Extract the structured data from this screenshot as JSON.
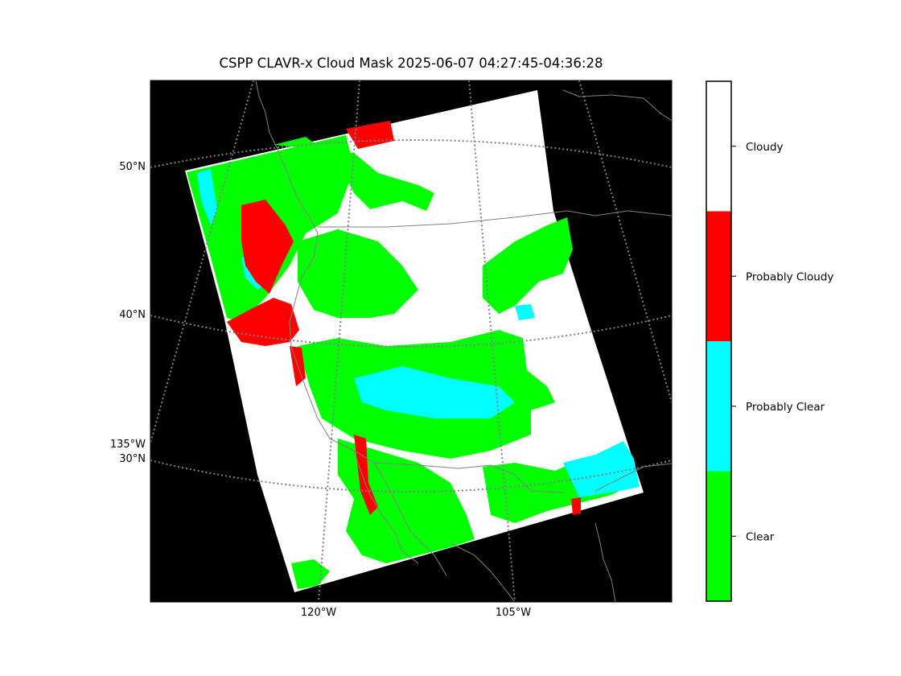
{
  "title": "CSPP CLAVR-x Cloud Mask 2025-06-07 04:27:45-04:36:28",
  "map": {
    "lat_labels": [
      "50°N",
      "40°N",
      "30°N"
    ],
    "lon_labels": [
      "120°W",
      "105°W"
    ],
    "lon_side_label": "135°W"
  },
  "colorbar": {
    "categories": [
      {
        "label": "Cloudy",
        "color": "#ffffff"
      },
      {
        "label": "Probably Cloudy",
        "color": "#ff0000"
      },
      {
        "label": "Probably Clear",
        "color": "#00ffff"
      },
      {
        "label": "Clear",
        "color": "#00ff00"
      }
    ]
  },
  "colors": {
    "background": "#000000",
    "coastline": "#808080",
    "graticule": "#808080"
  }
}
